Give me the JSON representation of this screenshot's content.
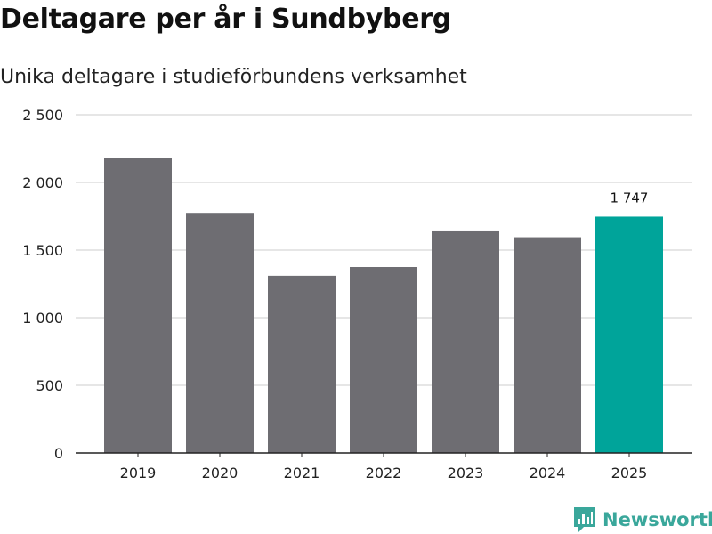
{
  "title": "Deltagare per år i Sundbyberg",
  "subtitle": "Unika deltagare i studieförbundens verksamhet",
  "brand": {
    "name": "Newsworthy",
    "icon": "newsworthy-logo-icon"
  },
  "colors": {
    "bar": "#6e6d72",
    "highlight": "#00a49a",
    "grid": "#dddddd",
    "axis": "#222222"
  },
  "chart_data": {
    "type": "bar",
    "title": "Deltagare per år i Sundbyberg",
    "subtitle": "Unika deltagare i studieförbundens verksamhet",
    "categories": [
      "2019",
      "2020",
      "2021",
      "2022",
      "2023",
      "2024",
      "2025"
    ],
    "values": [
      2180,
      1775,
      1310,
      1375,
      1645,
      1595,
      1747
    ],
    "highlight_index": 6,
    "data_labels": [
      {
        "index": 6,
        "text": "1 747"
      }
    ],
    "yticks": [
      0,
      500,
      1000,
      1500,
      2000,
      2500
    ],
    "ytick_labels": [
      "0",
      "500",
      "1 000",
      "1 500",
      "2 000",
      "2 500"
    ],
    "ylim": [
      0,
      2500
    ],
    "xlabel": "",
    "ylabel": "",
    "grid": true,
    "legend": "none"
  }
}
